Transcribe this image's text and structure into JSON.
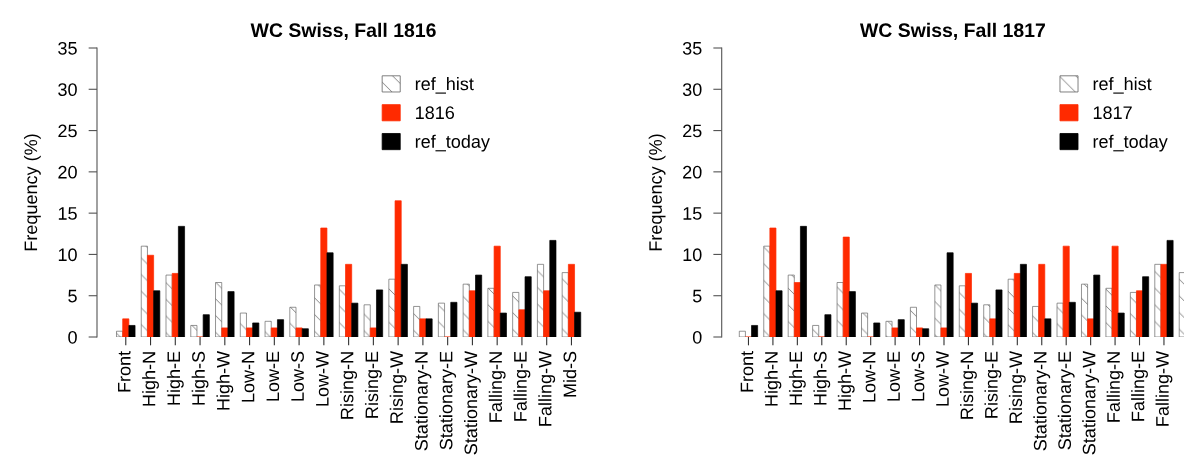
{
  "chart_data": [
    {
      "type": "bar",
      "title": "WC Swiss, Fall 1816",
      "ylabel": "Frequency (%)",
      "categories": [
        "Front",
        "High-N",
        "High-E",
        "High-S",
        "High-W",
        "Low-N",
        "Low-E",
        "Low-S",
        "Low-W",
        "Rising-N",
        "Rising-E",
        "Rising-W",
        "Stationary-N",
        "Stationary-E",
        "Stationary-W",
        "Falling-N",
        "Falling-E",
        "Falling-W",
        "Mid-S"
      ],
      "ylim": [
        0,
        35
      ],
      "yticks": [
        0,
        5,
        10,
        15,
        20,
        25,
        30,
        35
      ],
      "legend": "top right",
      "grid": false,
      "series": [
        {
          "name": "ref_hist",
          "color": "#666666",
          "values": [
            0.7,
            11.0,
            7.5,
            1.4,
            6.6,
            2.9,
            1.9,
            3.6,
            6.3,
            6.2,
            3.9,
            7.0,
            3.7,
            4.1,
            6.4,
            5.9,
            5.4,
            8.8,
            7.8
          ]
        },
        {
          "name": "1816",
          "color": "#ff2a00",
          "values": [
            2.2,
            9.9,
            7.7,
            0,
            1.1,
            1.1,
            1.1,
            1.1,
            13.2,
            8.8,
            1.1,
            16.5,
            2.2,
            0,
            5.6,
            11.0,
            3.3,
            5.6,
            8.8
          ]
        },
        {
          "name": "ref_today",
          "color": "#000000",
          "values": [
            1.4,
            5.6,
            13.4,
            2.7,
            5.5,
            1.7,
            2.1,
            1.0,
            10.2,
            4.1,
            5.7,
            8.8,
            2.2,
            4.2,
            7.5,
            2.9,
            7.3,
            11.7,
            3.0
          ]
        }
      ]
    },
    {
      "type": "bar",
      "title": "WC Swiss, Fall 1817",
      "ylabel": "Frequency (%)",
      "categories": [
        "Front",
        "High-N",
        "High-E",
        "High-S",
        "High-W",
        "Low-N",
        "Low-E",
        "Low-S",
        "Low-W",
        "Rising-N",
        "Rising-E",
        "Rising-W",
        "Stationary-N",
        "Stationary-E",
        "Stationary-W",
        "Falling-N",
        "Falling-E",
        "Falling-W",
        null
      ],
      "ylim": [
        0,
        35
      ],
      "yticks": [
        0,
        5,
        10,
        15,
        20,
        25,
        30,
        35
      ],
      "legend": "top right",
      "grid": false,
      "series": [
        {
          "name": "ref_hist",
          "color": "#666666",
          "values": [
            0.7,
            11.0,
            7.5,
            1.4,
            6.6,
            2.9,
            1.9,
            3.6,
            6.3,
            6.2,
            3.9,
            7.0,
            3.7,
            4.1,
            6.4,
            5.9,
            5.4,
            8.8,
            7.8
          ]
        },
        {
          "name": "1817",
          "color": "#ff2a00",
          "values": [
            0,
            13.2,
            6.6,
            0,
            12.1,
            0,
            1.1,
            1.1,
            1.1,
            7.7,
            2.2,
            7.7,
            8.8,
            11.0,
            2.2,
            11.0,
            5.6,
            8.8,
            null
          ]
        },
        {
          "name": "ref_today",
          "color": "#000000",
          "values": [
            1.4,
            5.6,
            13.4,
            2.7,
            5.5,
            1.7,
            2.1,
            1.0,
            10.2,
            4.1,
            5.7,
            8.8,
            2.2,
            4.2,
            7.5,
            2.9,
            7.3,
            11.7,
            null
          ]
        }
      ]
    }
  ]
}
